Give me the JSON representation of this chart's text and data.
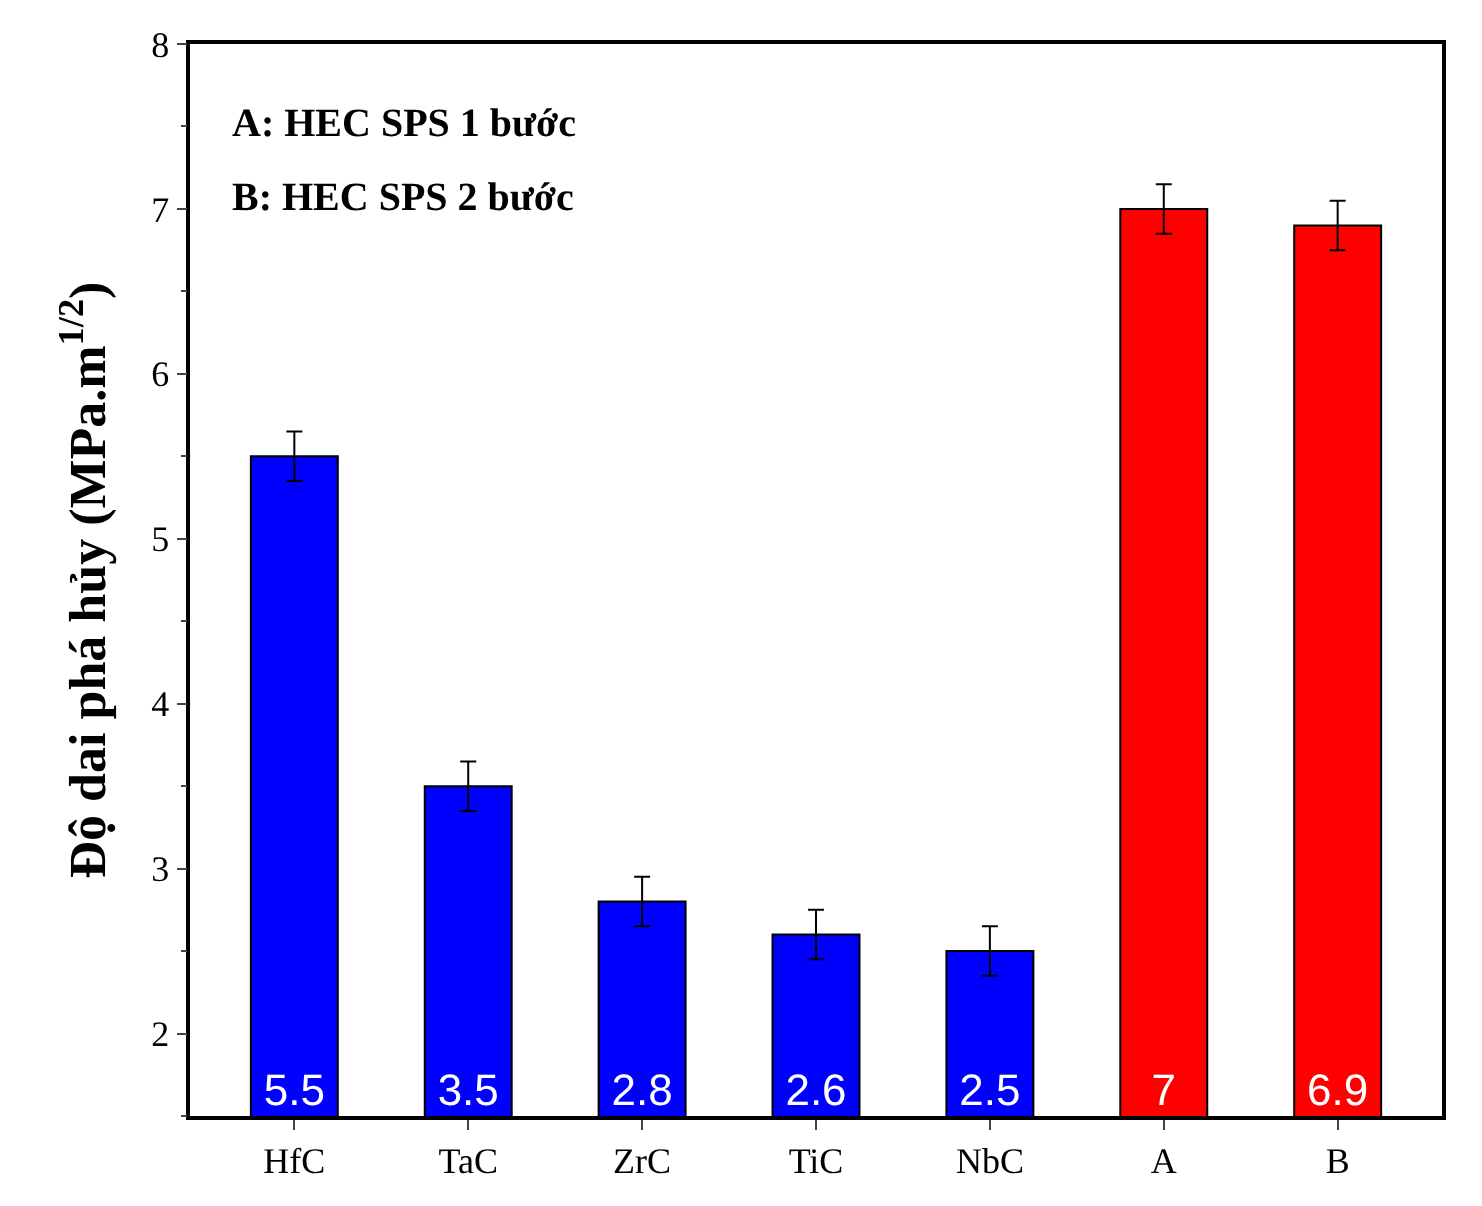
{
  "chart_data": {
    "type": "bar",
    "categories": [
      "HfC",
      "TaC",
      "ZrC",
      "TiC",
      "NbC",
      "A",
      "B"
    ],
    "values": [
      5.5,
      3.5,
      2.8,
      2.6,
      2.5,
      7,
      6.9
    ],
    "colors": [
      "#0000ff",
      "#0000ff",
      "#0000ff",
      "#0000ff",
      "#0000ff",
      "#ff0000",
      "#ff0000"
    ],
    "errors": [
      0.15,
      0.15,
      0.15,
      0.15,
      0.15,
      0.15,
      0.15
    ],
    "data_labels": true,
    "ylabel": "Độ dai phá hủy (MPa.m$^{1/2}$)",
    "ylim": [
      1.5,
      8
    ],
    "yticks": [
      2,
      3,
      4,
      5,
      6,
      7,
      8
    ],
    "annotations": [
      "A: HEC SPS 1 bước",
      "B: HEC SPS 2 bước"
    ],
    "tick_labels": "xy"
  }
}
